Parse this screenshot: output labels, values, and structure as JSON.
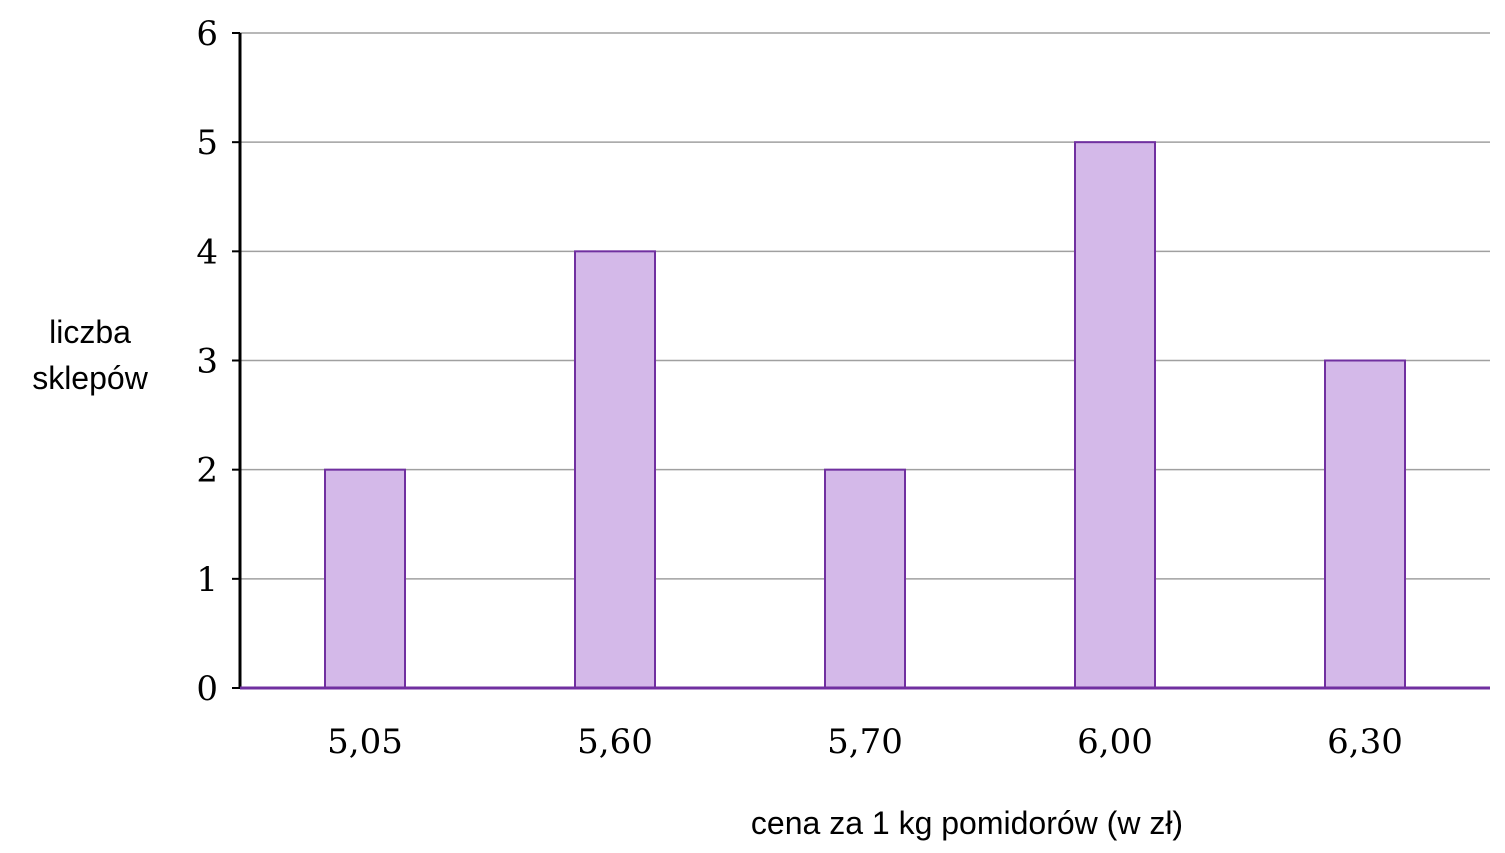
{
  "chart_data": {
    "type": "bar",
    "categories": [
      "5,05",
      "5,60",
      "5,70",
      "6,00",
      "6,30"
    ],
    "values": [
      2,
      4,
      2,
      5,
      3
    ],
    "y_ticks": [
      "0",
      "1",
      "2",
      "3",
      "4",
      "5",
      "6"
    ],
    "ylim": [
      0,
      6
    ],
    "ylabel_lines": [
      "liczba",
      "sklepów"
    ],
    "xlabel": "cena za 1 kg pomidorów (w zł)",
    "grid": true,
    "legend": "none",
    "colors": {
      "bar_fill": "#d4b9e9",
      "bar_stroke": "#7030a0",
      "grid": "#a0a0a0",
      "axis": "#000000"
    }
  }
}
